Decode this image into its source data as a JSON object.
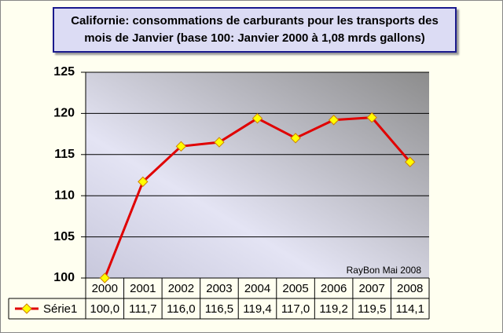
{
  "chart_data": {
    "type": "line",
    "title": "Californie: consommations de carburants pour les transports des mois de Janvier (base 100: Janvier 2000 à 1,08 mrds gallons)",
    "annotation": "RayBon Mai 2008",
    "categories": [
      "2000",
      "2001",
      "2002",
      "2003",
      "2004",
      "2005",
      "2006",
      "2007",
      "2008"
    ],
    "series": [
      {
        "name": "Série1",
        "color": "#e00000",
        "marker_color": "#ffff00",
        "values": [
          100.0,
          111.7,
          116.0,
          116.5,
          119.4,
          117.0,
          119.2,
          119.5,
          114.1
        ],
        "value_labels": [
          "100,0",
          "111,7",
          "116,0",
          "116,5",
          "119,4",
          "117,0",
          "119,2",
          "119,5",
          "114,1"
        ]
      }
    ],
    "ylim": [
      100,
      125
    ],
    "yticks": [
      100,
      105,
      110,
      115,
      120,
      125
    ],
    "grid": true
  }
}
